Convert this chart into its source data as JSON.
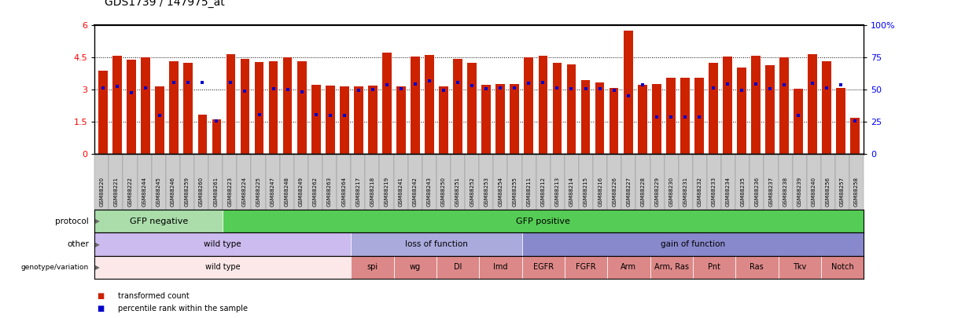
{
  "title": "GDS1739 / 147975_at",
  "bar_color": "#cc2200",
  "dot_color": "#0000cc",
  "ylim_left": [
    0,
    6
  ],
  "ylim_right": [
    0,
    100
  ],
  "yticks_left": [
    0,
    1.5,
    3.0,
    4.5,
    6
  ],
  "ytick_labels_left": [
    "0",
    "1.5",
    "3",
    "4.5",
    "6"
  ],
  "yticks_right": [
    0,
    25,
    50,
    75,
    100
  ],
  "ytick_labels_right": [
    "0",
    "25",
    "50",
    "75",
    "100%"
  ],
  "hlines": [
    1.5,
    3.0,
    4.5
  ],
  "samples": [
    "GSM88220",
    "GSM88221",
    "GSM88222",
    "GSM88244",
    "GSM88245",
    "GSM88246",
    "GSM88259",
    "GSM88260",
    "GSM88261",
    "GSM88223",
    "GSM88224",
    "GSM88225",
    "GSM88247",
    "GSM88248",
    "GSM88249",
    "GSM88262",
    "GSM88263",
    "GSM88264",
    "GSM88217",
    "GSM88218",
    "GSM88219",
    "GSM88241",
    "GSM88242",
    "GSM88243",
    "GSM88250",
    "GSM88251",
    "GSM88252",
    "GSM88253",
    "GSM88254",
    "GSM88255",
    "GSM88211",
    "GSM88212",
    "GSM88213",
    "GSM88214",
    "GSM88215",
    "GSM88216",
    "GSM88226",
    "GSM88227",
    "GSM88228",
    "GSM88229",
    "GSM88230",
    "GSM88231",
    "GSM88232",
    "GSM88233",
    "GSM88234",
    "GSM88235",
    "GSM88236",
    "GSM88237",
    "GSM88238",
    "GSM88239",
    "GSM88240",
    "GSM88256",
    "GSM88257",
    "GSM88258"
  ],
  "bar_heights": [
    3.9,
    4.6,
    4.4,
    4.5,
    3.15,
    4.35,
    4.25,
    1.85,
    1.62,
    4.65,
    4.45,
    4.3,
    4.35,
    4.5,
    4.35,
    3.25,
    3.2,
    3.15,
    3.17,
    3.18,
    4.75,
    3.15,
    4.55,
    4.62,
    3.15,
    4.45,
    4.25,
    3.25,
    3.27,
    3.27,
    4.5,
    4.6,
    4.25,
    4.2,
    3.45,
    3.35,
    3.07,
    5.75,
    3.25,
    3.26,
    3.55,
    3.55,
    3.55,
    4.25,
    4.55,
    4.05,
    4.6,
    4.15,
    4.5,
    3.05,
    4.65,
    4.35,
    3.1,
    1.7
  ],
  "dot_heights": [
    3.07,
    3.15,
    2.88,
    3.1,
    1.82,
    3.35,
    3.35,
    3.35,
    1.57,
    3.35,
    2.95,
    1.85,
    3.05,
    3.0,
    2.92,
    1.85,
    1.82,
    1.8,
    2.97,
    3.0,
    3.25,
    3.05,
    3.27,
    3.42,
    2.97,
    3.35,
    3.18,
    3.05,
    3.08,
    3.07,
    3.3,
    3.35,
    3.08,
    3.05,
    3.05,
    3.05,
    2.97,
    2.72,
    3.22,
    1.72,
    1.73,
    1.73,
    1.73,
    3.08,
    3.28,
    2.97,
    3.28,
    3.05,
    3.25,
    1.82,
    3.3,
    3.07,
    3.25,
    1.55
  ],
  "protocol_groups": [
    {
      "label": "GFP negative",
      "start": 0,
      "end": 9,
      "color": "#aaddaa"
    },
    {
      "label": "GFP positive",
      "start": 9,
      "end": 54,
      "color": "#55cc55"
    }
  ],
  "other_groups": [
    {
      "label": "wild type",
      "start": 0,
      "end": 18,
      "color": "#ccbbee"
    },
    {
      "label": "loss of function",
      "start": 18,
      "end": 30,
      "color": "#aaaadd"
    },
    {
      "label": "gain of function",
      "start": 30,
      "end": 54,
      "color": "#8888cc"
    }
  ],
  "genotype_groups": [
    {
      "label": "wild type",
      "start": 0,
      "end": 18,
      "color": "#fce8e8"
    },
    {
      "label": "spi",
      "start": 18,
      "end": 21,
      "color": "#dd8888"
    },
    {
      "label": "wg",
      "start": 21,
      "end": 24,
      "color": "#dd8888"
    },
    {
      "label": "Dl",
      "start": 24,
      "end": 27,
      "color": "#dd8888"
    },
    {
      "label": "Imd",
      "start": 27,
      "end": 30,
      "color": "#dd8888"
    },
    {
      "label": "EGFR",
      "start": 30,
      "end": 33,
      "color": "#dd8888"
    },
    {
      "label": "FGFR",
      "start": 33,
      "end": 36,
      "color": "#dd8888"
    },
    {
      "label": "Arm",
      "start": 36,
      "end": 39,
      "color": "#dd8888"
    },
    {
      "label": "Arm, Ras",
      "start": 39,
      "end": 42,
      "color": "#dd8888"
    },
    {
      "label": "Pnt",
      "start": 42,
      "end": 45,
      "color": "#dd8888"
    },
    {
      "label": "Ras",
      "start": 45,
      "end": 48,
      "color": "#dd8888"
    },
    {
      "label": "Tkv",
      "start": 48,
      "end": 51,
      "color": "#dd8888"
    },
    {
      "label": "Notch",
      "start": 51,
      "end": 54,
      "color": "#dd8888"
    }
  ],
  "legend_items": [
    {
      "color": "#cc2200",
      "label": "transformed count"
    },
    {
      "color": "#0000cc",
      "label": "percentile rank within the sample"
    }
  ],
  "xticklabel_bg": "#cccccc",
  "fig_width": 12.27,
  "fig_height": 4.05
}
